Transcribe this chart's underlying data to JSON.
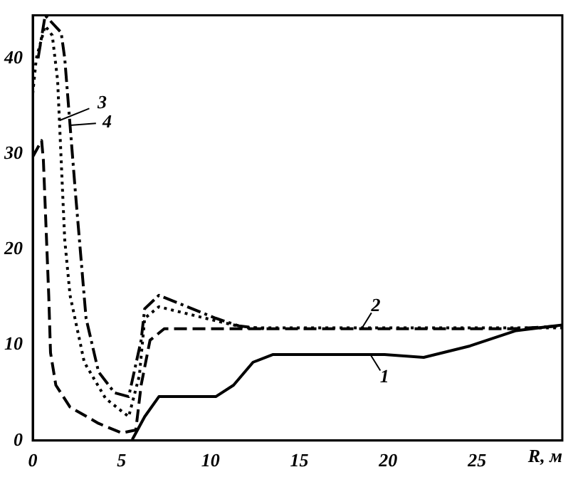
{
  "chart_data": {
    "type": "line",
    "xlabel": "R, м",
    "xlim": [
      0,
      29.8
    ],
    "ylim": [
      0,
      44.5
    ],
    "xticks": [
      0,
      5,
      10,
      15,
      20,
      25
    ],
    "yticks": [
      0,
      10,
      20,
      30,
      40
    ],
    "grid": false,
    "legend": false,
    "marker": "none",
    "series": [
      {
        "color": "#000000",
        "line_style": "solid",
        "x": [
          5.6,
          6.3,
          7.1,
          10.3,
          11.3,
          12.4,
          13.5,
          19.8,
          22,
          24.6,
          27.2,
          29.8
        ],
        "values": [
          0.1,
          2.5,
          4.6,
          4.6,
          5.8,
          8.2,
          9.0,
          9.0,
          8.7,
          9.9,
          11.5,
          12.1
        ]
      },
      {
        "color": "#000000",
        "line_style": "dashed",
        "x": [
          0,
          0.5,
          0.6,
          0.9,
          1.0,
          1.3,
          2.1,
          3.7,
          5.0,
          5.8,
          6.1,
          6.6,
          7.4,
          27,
          29.8
        ],
        "values": [
          29.7,
          31.4,
          29.3,
          15.2,
          9.2,
          5.8,
          3.5,
          1.8,
          0.8,
          1.1,
          5.8,
          10.5,
          11.7,
          11.7,
          12.0
        ]
      },
      {
        "color": "#000000",
        "line_style": "dotted",
        "x": [
          0,
          0.2,
          0.7,
          1.1,
          1.4,
          1.8,
          2.1,
          2.9,
          4.1,
          5.4,
          6.0,
          6.3,
          7.1,
          10.6,
          12,
          29.8
        ],
        "values": [
          36.3,
          40,
          43.4,
          42.4,
          37.7,
          21,
          15.2,
          8.2,
          4.4,
          2.5,
          6.8,
          12.8,
          14.0,
          12.4,
          11.8,
          11.8
        ]
      },
      {
        "color": "#000000",
        "line_style": "dashdot",
        "x": [
          0.3,
          0.7,
          1.6,
          1.8,
          2.4,
          3.0,
          3.7,
          4.6,
          5.4,
          6.1,
          6.3,
          7.1,
          10.3,
          11.6,
          13
        ],
        "values": [
          40,
          44.5,
          42.7,
          40,
          26,
          12.8,
          7.2,
          5.0,
          4.6,
          10.5,
          13.8,
          15.2,
          12.8,
          12.0,
          11.7
        ]
      }
    ],
    "annotations": [
      {
        "text": "1",
        "x": 19,
        "y": 9.0
      },
      {
        "text": "2",
        "x": 18.5,
        "y": 11.7
      },
      {
        "text": "3",
        "x": 1.5,
        "y": 33.5
      },
      {
        "text": "4",
        "x": 2.1,
        "y": 33
      }
    ]
  }
}
